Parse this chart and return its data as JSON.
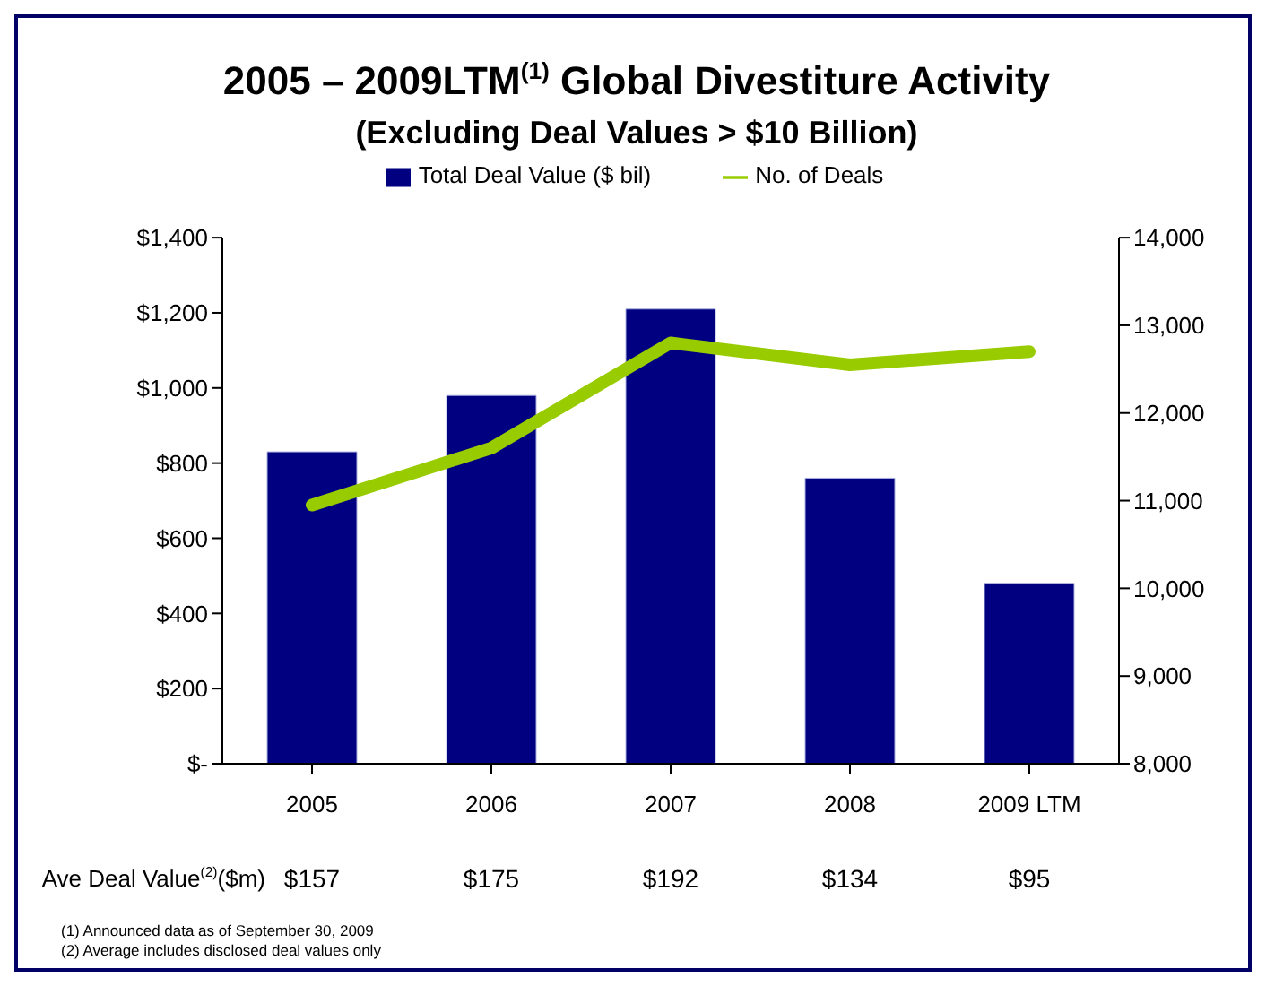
{
  "chart_data": {
    "type": "bar",
    "title": "2005 – 2009LTM$^{(1)}$ Global Divestiture Activity",
    "subtitle": "(Excluding Deal Values > $10 Billion)",
    "categories": [
      "2005",
      "2006",
      "2007",
      "2008",
      "2009 LTM"
    ],
    "series": [
      {
        "name": "Total Deal Value ($ bil)",
        "color": "#000080",
        "values": [
          830,
          980,
          1210,
          760,
          480
        ]
      },
      {
        "name": "No. of Deals",
        "type": "line",
        "axis": "y2",
        "color": "#99cc00",
        "values": [
          10950,
          11600,
          12800,
          12550,
          12700
        ]
      }
    ],
    "ylim": [
      0,
      1400
    ],
    "yticks": [
      {
        "value": 0,
        "label": "$-"
      },
      {
        "value": 200,
        "label": "$200"
      },
      {
        "value": 400,
        "label": "$400"
      },
      {
        "value": 600,
        "label": "$600"
      },
      {
        "value": 800,
        "label": "$800"
      },
      {
        "value": 1000,
        "label": "$1,000"
      },
      {
        "value": 1200,
        "label": "$1,200"
      },
      {
        "value": 1400,
        "label": "$1,400"
      }
    ],
    "y2lim": [
      8000,
      14000
    ],
    "y2ticks": [
      {
        "value": 8000,
        "label": "8,000"
      },
      {
        "value": 9000,
        "label": "9,000"
      },
      {
        "value": 10000,
        "label": "10,000"
      },
      {
        "value": 11000,
        "label": "11,000"
      },
      {
        "value": 12000,
        "label": "12,000"
      },
      {
        "value": 13000,
        "label": "13,000"
      },
      {
        "value": 14000,
        "label": "14,000"
      }
    ],
    "grid": false,
    "legend": "top",
    "annotations": [
      "Ave Deal Value$^{(2)}$($m)",
      "$157",
      "$175",
      "$192",
      "$134",
      "$95",
      "(1) Announced data as of September 30, 2009",
      "(2) Average includes disclosed deal values only"
    ]
  }
}
